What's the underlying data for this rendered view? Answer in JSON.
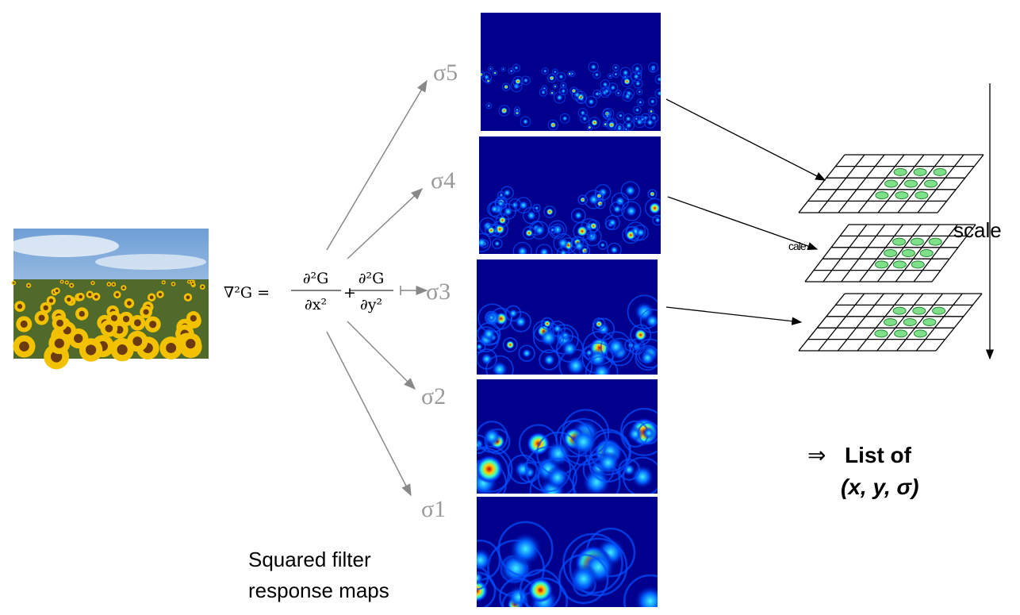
{
  "formula": {
    "lhs": "∇²G =",
    "term1": {
      "num": "∂²G",
      "den": "∂x²"
    },
    "plus": "+",
    "term2": {
      "num": "∂²G",
      "den": "∂y²"
    }
  },
  "sigma_labels": [
    "σ5",
    "σ4",
    "σ3",
    "σ2",
    "σ1"
  ],
  "caption": [
    "Squared filter",
    "response maps"
  ],
  "scale_label": "scale",
  "scale_label_partial": "cale",
  "result": {
    "arrow": "⇒",
    "line1": "List of",
    "line2": "(x, y, σ)"
  }
}
